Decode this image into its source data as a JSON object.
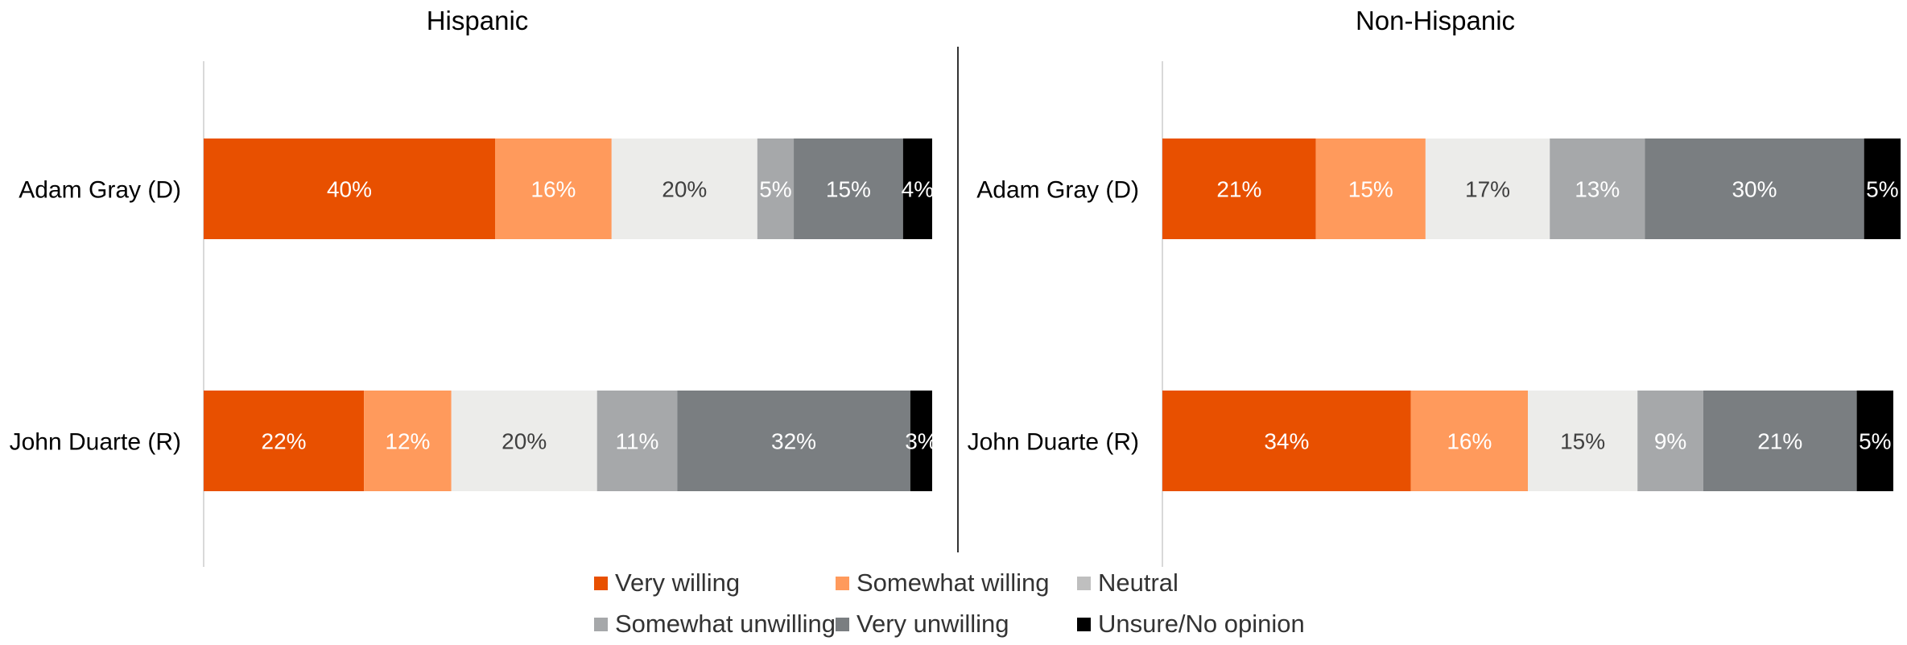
{
  "chart_data": [
    {
      "type": "bar",
      "orientation": "horizontal",
      "stacked": true,
      "title": "Hispanic",
      "categories": [
        "Adam Gray (D)",
        "John Duarte (R)"
      ],
      "series": [
        {
          "name": "Very willing",
          "values": [
            40,
            22
          ]
        },
        {
          "name": "Somewhat willing",
          "values": [
            16,
            12
          ]
        },
        {
          "name": "Neutral",
          "values": [
            20,
            20
          ]
        },
        {
          "name": "Somewhat unwilling",
          "values": [
            5,
            11
          ]
        },
        {
          "name": "Very unwilling",
          "values": [
            15,
            32
          ]
        },
        {
          "name": "Unsure/No opinion",
          "values": [
            4,
            3
          ]
        }
      ],
      "value_labels": [
        [
          "40%",
          "16%",
          "20%",
          "5%",
          "15%",
          "4%"
        ],
        [
          "22%",
          "12%",
          "20%",
          "11%",
          "32%",
          "3%"
        ]
      ],
      "xlim": [
        0,
        100
      ]
    },
    {
      "type": "bar",
      "orientation": "horizontal",
      "stacked": true,
      "title": "Non-Hispanic",
      "categories": [
        "Adam Gray (D)",
        "John Duarte (R)"
      ],
      "series": [
        {
          "name": "Very willing",
          "values": [
            21,
            34
          ]
        },
        {
          "name": "Somewhat willing",
          "values": [
            15,
            16
          ]
        },
        {
          "name": "Neutral",
          "values": [
            17,
            15
          ]
        },
        {
          "name": "Somewhat unwilling",
          "values": [
            13,
            9
          ]
        },
        {
          "name": "Very unwilling",
          "values": [
            30,
            21
          ]
        },
        {
          "name": "Unsure/No opinion",
          "values": [
            5,
            5
          ]
        }
      ],
      "value_labels": [
        [
          "21%",
          "15%",
          "17%",
          "13%",
          "30%",
          "5%"
        ],
        [
          "34%",
          "16%",
          "15%",
          "9%",
          "21%",
          "5%"
        ]
      ],
      "xlim": [
        0,
        100
      ]
    }
  ],
  "legend": {
    "items": [
      {
        "label": "Very willing",
        "bar_color": "#e85000",
        "swatch_color": "#e85000"
      },
      {
        "label": "Somewhat willing",
        "bar_color": "#ff9a5c",
        "swatch_color": "#ff9a5c"
      },
      {
        "label": "Neutral",
        "bar_color": "#ececea",
        "swatch_color": "#bfbfbf"
      },
      {
        "label": "Somewhat unwilling",
        "bar_color": "#a6a8aa",
        "swatch_color": "#a6a8aa"
      },
      {
        "label": "Very unwilling",
        "bar_color": "#7a7e81",
        "swatch_color": "#7a7e81"
      },
      {
        "label": "Unsure/No opinion",
        "bar_color": "#000000",
        "swatch_color": "#000000"
      }
    ]
  },
  "label_colors": {
    "light": "#ffffff",
    "dark": "#404040"
  }
}
